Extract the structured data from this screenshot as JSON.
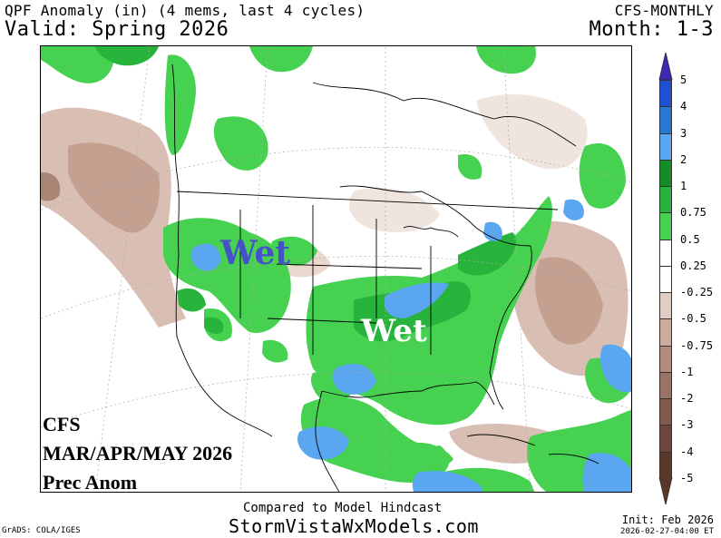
{
  "header": {
    "title": "QPF Anomaly (in) (4 mems, last 4 cycles)",
    "model": "CFS-MONTHLY",
    "valid": "Valid: Spring 2026",
    "month": "Month: 1-3"
  },
  "overlay": {
    "wet_west": "Wet",
    "wet_east": "Wet",
    "caption_line1": "CFS",
    "caption_line2": "MAR/APR/MAY 2026",
    "caption_line3": "Prec Anom"
  },
  "colorbar": {
    "labels": [
      "5",
      "4",
      "3",
      "2",
      "1",
      "0.75",
      "0.5",
      "0.25",
      "-0.25",
      "-0.5",
      "-0.75",
      "-1",
      "-2",
      "-3",
      "-4",
      "-5"
    ],
    "colors": [
      "#1414d2",
      "#1e50d2",
      "#2878d2",
      "#5aa6f0",
      "#148c28",
      "#28b43c",
      "#46d250",
      "#ffffff",
      "#f0e6e1",
      "#e1cdc3",
      "#cdaa9b",
      "#b48c7d",
      "#9b7364",
      "#825a4b",
      "#6e463c",
      "#5a3728"
    ]
  },
  "footer": {
    "compared": "Compared to Model Hindcast",
    "site": "StormVistaWxModels.com",
    "grads": "GrADS: COLA/IGES",
    "init": "Init: Feb 2026",
    "timestamp": "2026-02-27-04:00 ET"
  }
}
